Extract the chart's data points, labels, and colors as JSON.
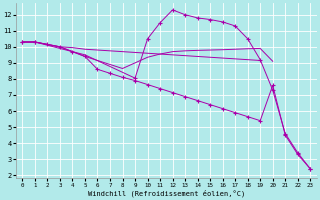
{
  "xlabel": "Windchill (Refroidissement éolien,°C)",
  "background_color": "#b2eaea",
  "grid_color": "#ffffff",
  "line_color": "#aa00aa",
  "xlim": [
    -0.5,
    23.5
  ],
  "ylim": [
    1.8,
    12.7
  ],
  "xticks": [
    0,
    1,
    2,
    3,
    4,
    5,
    6,
    7,
    8,
    9,
    10,
    11,
    12,
    13,
    14,
    15,
    16,
    17,
    18,
    19,
    20,
    21,
    22,
    23
  ],
  "yticks": [
    2,
    3,
    4,
    5,
    6,
    7,
    8,
    9,
    10,
    11,
    12
  ],
  "line1_x": [
    0,
    1,
    2,
    3,
    4,
    5,
    6,
    7,
    8,
    9,
    10,
    11,
    12,
    13,
    14,
    15,
    16,
    17,
    18,
    19
  ],
  "line1_y": [
    10.3,
    10.3,
    10.15,
    10.0,
    9.95,
    9.85,
    9.8,
    9.75,
    9.7,
    9.65,
    9.6,
    9.55,
    9.5,
    9.45,
    9.4,
    9.35,
    9.3,
    9.25,
    9.2,
    9.15
  ],
  "line2_x": [
    0,
    1,
    2,
    3,
    4,
    5,
    6,
    7,
    8,
    9,
    10,
    11,
    12,
    13,
    14,
    15,
    16,
    17,
    18,
    19,
    20,
    21,
    22,
    23
  ],
  "line2_y": [
    10.3,
    10.3,
    10.15,
    10.0,
    9.7,
    9.4,
    8.6,
    8.35,
    8.1,
    7.9,
    7.65,
    7.4,
    7.15,
    6.9,
    6.65,
    6.4,
    6.15,
    5.9,
    5.65,
    5.4,
    7.6,
    4.5,
    3.3,
    2.4
  ],
  "line3_x": [
    0,
    1,
    2,
    3,
    4,
    5,
    6,
    7,
    8,
    9,
    10,
    11,
    12,
    13,
    14,
    15,
    16,
    17,
    18,
    19,
    20
  ],
  "line3_y": [
    10.3,
    10.3,
    10.15,
    10.0,
    9.7,
    9.4,
    9.15,
    8.9,
    8.65,
    9.0,
    9.35,
    9.55,
    9.7,
    9.75,
    9.78,
    9.8,
    9.82,
    9.85,
    9.88,
    9.9,
    9.1
  ],
  "line4_x": [
    0,
    1,
    5,
    9,
    10,
    11,
    12,
    13,
    14,
    15,
    16,
    17,
    18,
    19,
    20,
    21,
    22,
    23
  ],
  "line4_y": [
    10.3,
    10.3,
    9.5,
    8.05,
    10.5,
    11.5,
    12.3,
    12.0,
    11.8,
    11.7,
    11.55,
    11.3,
    10.5,
    9.2,
    7.3,
    4.6,
    3.4,
    2.4
  ],
  "line4_marker_x": [
    9,
    10,
    11,
    12,
    13,
    14,
    15,
    16,
    17,
    18,
    19,
    20,
    21,
    22,
    23
  ],
  "line4_marker_y": [
    8.05,
    10.5,
    11.5,
    12.3,
    12.0,
    11.8,
    11.7,
    11.55,
    11.3,
    10.5,
    9.2,
    7.3,
    4.6,
    3.4,
    2.4
  ]
}
